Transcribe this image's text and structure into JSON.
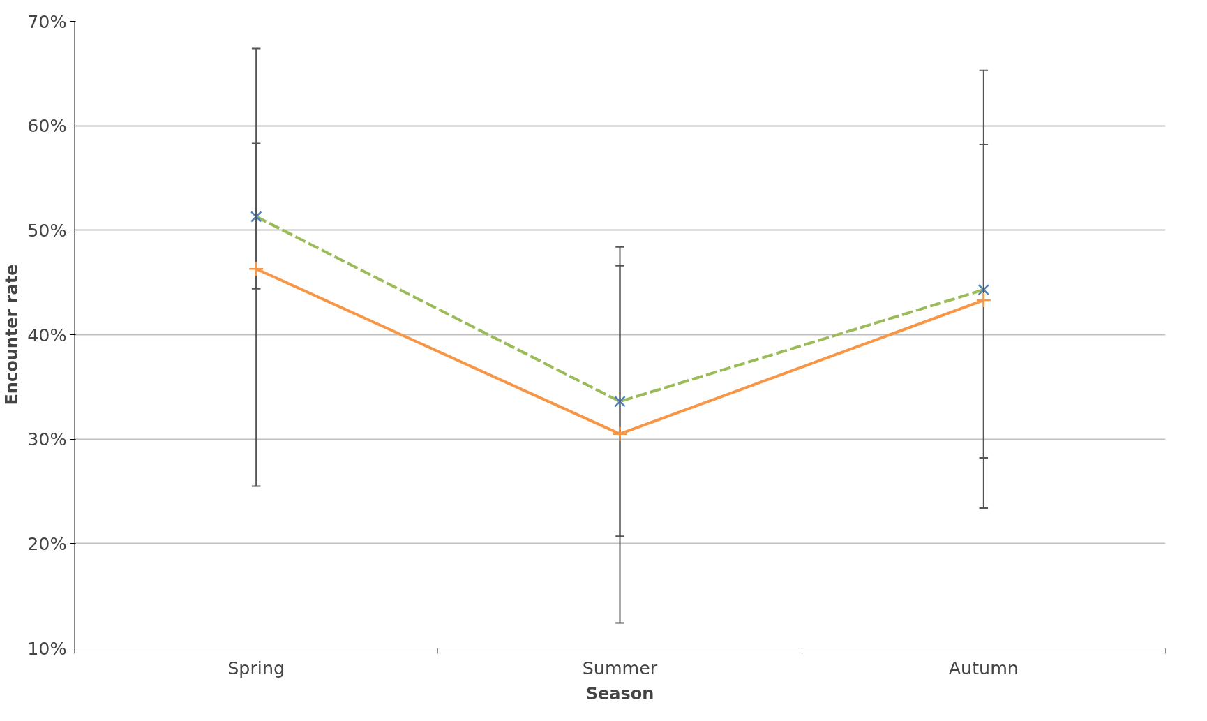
{
  "chart_data": {
    "type": "line",
    "xlabel": "Season",
    "ylabel": "Encounter rate",
    "categories": [
      "Spring",
      "Summer",
      "Autumn"
    ],
    "series": [
      {
        "color": "#9bbb59",
        "colors": [
          "#4f81bd",
          "#4f81bd",
          "#4f81bd"
        ],
        "line_style": "dashed",
        "marker": "x",
        "values": [
          51.3,
          33.6,
          44.3
        ],
        "errors": [
          [
            44.4,
            58.3
          ],
          [
            20.7,
            46.6
          ],
          [
            23.4,
            65.3
          ]
        ]
      },
      {
        "color": "#f79646",
        "line_style": "solid",
        "marker": "cross",
        "values": [
          46.3,
          30.5,
          43.3
        ],
        "errors": [
          [
            25.5,
            67.4
          ],
          [
            12.4,
            48.4
          ],
          [
            28.2,
            58.2
          ]
        ]
      }
    ],
    "ylim": [
      10,
      70
    ],
    "yticks": [
      {
        "value": 10,
        "label": "10%"
      },
      {
        "value": 20,
        "label": "20%"
      },
      {
        "value": 30,
        "label": "30%"
      },
      {
        "value": 40,
        "label": "40%"
      },
      {
        "value": 50,
        "label": "50%"
      },
      {
        "value": 60,
        "label": "60%"
      },
      {
        "value": 70,
        "label": "70%"
      }
    ],
    "grid": "y"
  }
}
